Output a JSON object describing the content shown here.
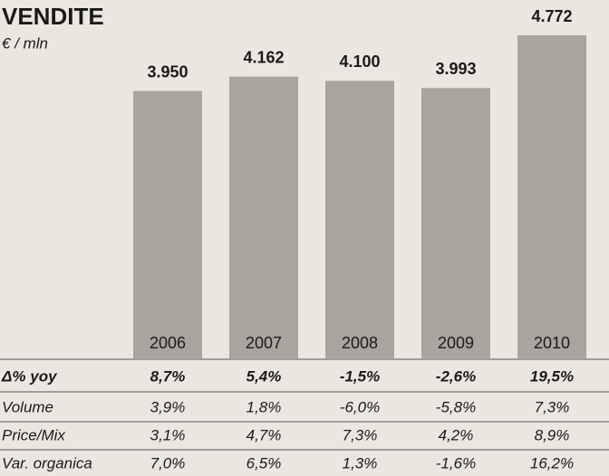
{
  "chart_data": {
    "type": "bar",
    "title": "VENDITE",
    "subtitle": "€ / mln",
    "categories": [
      "2006",
      "2007",
      "2008",
      "2009",
      "2010"
    ],
    "values": [
      3950,
      4162,
      4100,
      3993,
      4772
    ],
    "value_labels": [
      "3.950",
      "4.162",
      "4.100",
      "3.993",
      "4.772"
    ],
    "color": "#a8a49e",
    "ylim": [
      0,
      5000
    ],
    "table": {
      "rows": [
        {
          "label": "Δ% yoy",
          "values": [
            "8,7%",
            "5,4%",
            "-1,5%",
            "-2,6%",
            "19,5%"
          ]
        },
        {
          "label": "Volume",
          "values": [
            "3,9%",
            "1,8%",
            "-6,0%",
            "-5,8%",
            "7,3%"
          ]
        },
        {
          "label": "Price/Mix",
          "values": [
            "3,1%",
            "4,7%",
            "7,3%",
            "4,2%",
            "8,9%"
          ]
        },
        {
          "label": "Var. organica",
          "values": [
            "7,0%",
            "6,5%",
            "1,3%",
            "-1,6%",
            "16,2%"
          ]
        }
      ]
    }
  }
}
